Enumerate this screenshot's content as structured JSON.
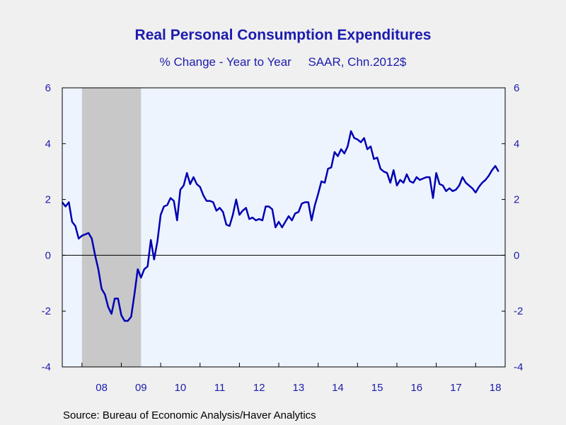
{
  "chart_data": {
    "type": "line",
    "title": "Real Personal Consumption Expenditures",
    "subtitle": "% Change - Year to Year     SAAR, Chn.2012$",
    "source": "Source:  Bureau of Economic Analysis/Haver Analytics",
    "ylim": [
      -4,
      6
    ],
    "yticks": [
      "6",
      "4",
      "2",
      "0",
      "-2",
      "-4"
    ],
    "xticks": [
      "08",
      "09",
      "10",
      "11",
      "12",
      "13",
      "14",
      "15",
      "16",
      "17",
      "18"
    ],
    "x_start": "2007-07",
    "recession": [
      "2008-01",
      "2009-06"
    ],
    "zero_line": true,
    "colors": {
      "line": "#0000b4",
      "plot_bg": "#eef4fe",
      "recession": "#c8c8c8",
      "text": "#1c1cae"
    },
    "series": [
      {
        "values": [
          1.9,
          1.75,
          1.9,
          1.2,
          1.05,
          0.6,
          0.7,
          0.75,
          0.8,
          0.6,
          0.0,
          -0.5,
          -1.2,
          -1.4,
          -1.85,
          -2.1,
          -1.55,
          -1.55,
          -2.15,
          -2.35,
          -2.35,
          -2.2,
          -1.4,
          -0.5,
          -0.8,
          -0.5,
          -0.4,
          0.55,
          -0.15,
          0.5,
          1.45,
          1.75,
          1.8,
          2.05,
          1.95,
          1.25,
          2.35,
          2.5,
          2.95,
          2.55,
          2.8,
          2.55,
          2.45,
          2.15,
          1.95,
          1.95,
          1.9,
          1.6,
          1.7,
          1.55,
          1.1,
          1.05,
          1.45,
          2.0,
          1.45,
          1.6,
          1.7,
          1.3,
          1.35,
          1.25,
          1.3,
          1.25,
          1.75,
          1.75,
          1.65,
          1.0,
          1.2,
          1.0,
          1.2,
          1.4,
          1.25,
          1.5,
          1.55,
          1.85,
          1.9,
          1.9,
          1.25,
          1.8,
          2.2,
          2.65,
          2.6,
          3.1,
          3.15,
          3.7,
          3.55,
          3.8,
          3.65,
          3.9,
          4.45,
          4.2,
          4.15,
          4.05,
          4.2,
          3.8,
          3.9,
          3.45,
          3.5,
          3.1,
          3.0,
          2.95,
          2.6,
          3.05,
          2.5,
          2.7,
          2.6,
          2.9,
          2.65,
          2.6,
          2.8,
          2.7,
          2.75,
          2.8,
          2.8,
          2.05,
          2.95,
          2.55,
          2.5,
          2.3,
          2.4,
          2.3,
          2.35,
          2.5,
          2.8,
          2.6,
          2.5,
          2.4,
          2.25,
          2.45,
          2.6,
          2.7,
          2.85,
          3.05,
          3.2,
          3.0
        ]
      }
    ]
  }
}
